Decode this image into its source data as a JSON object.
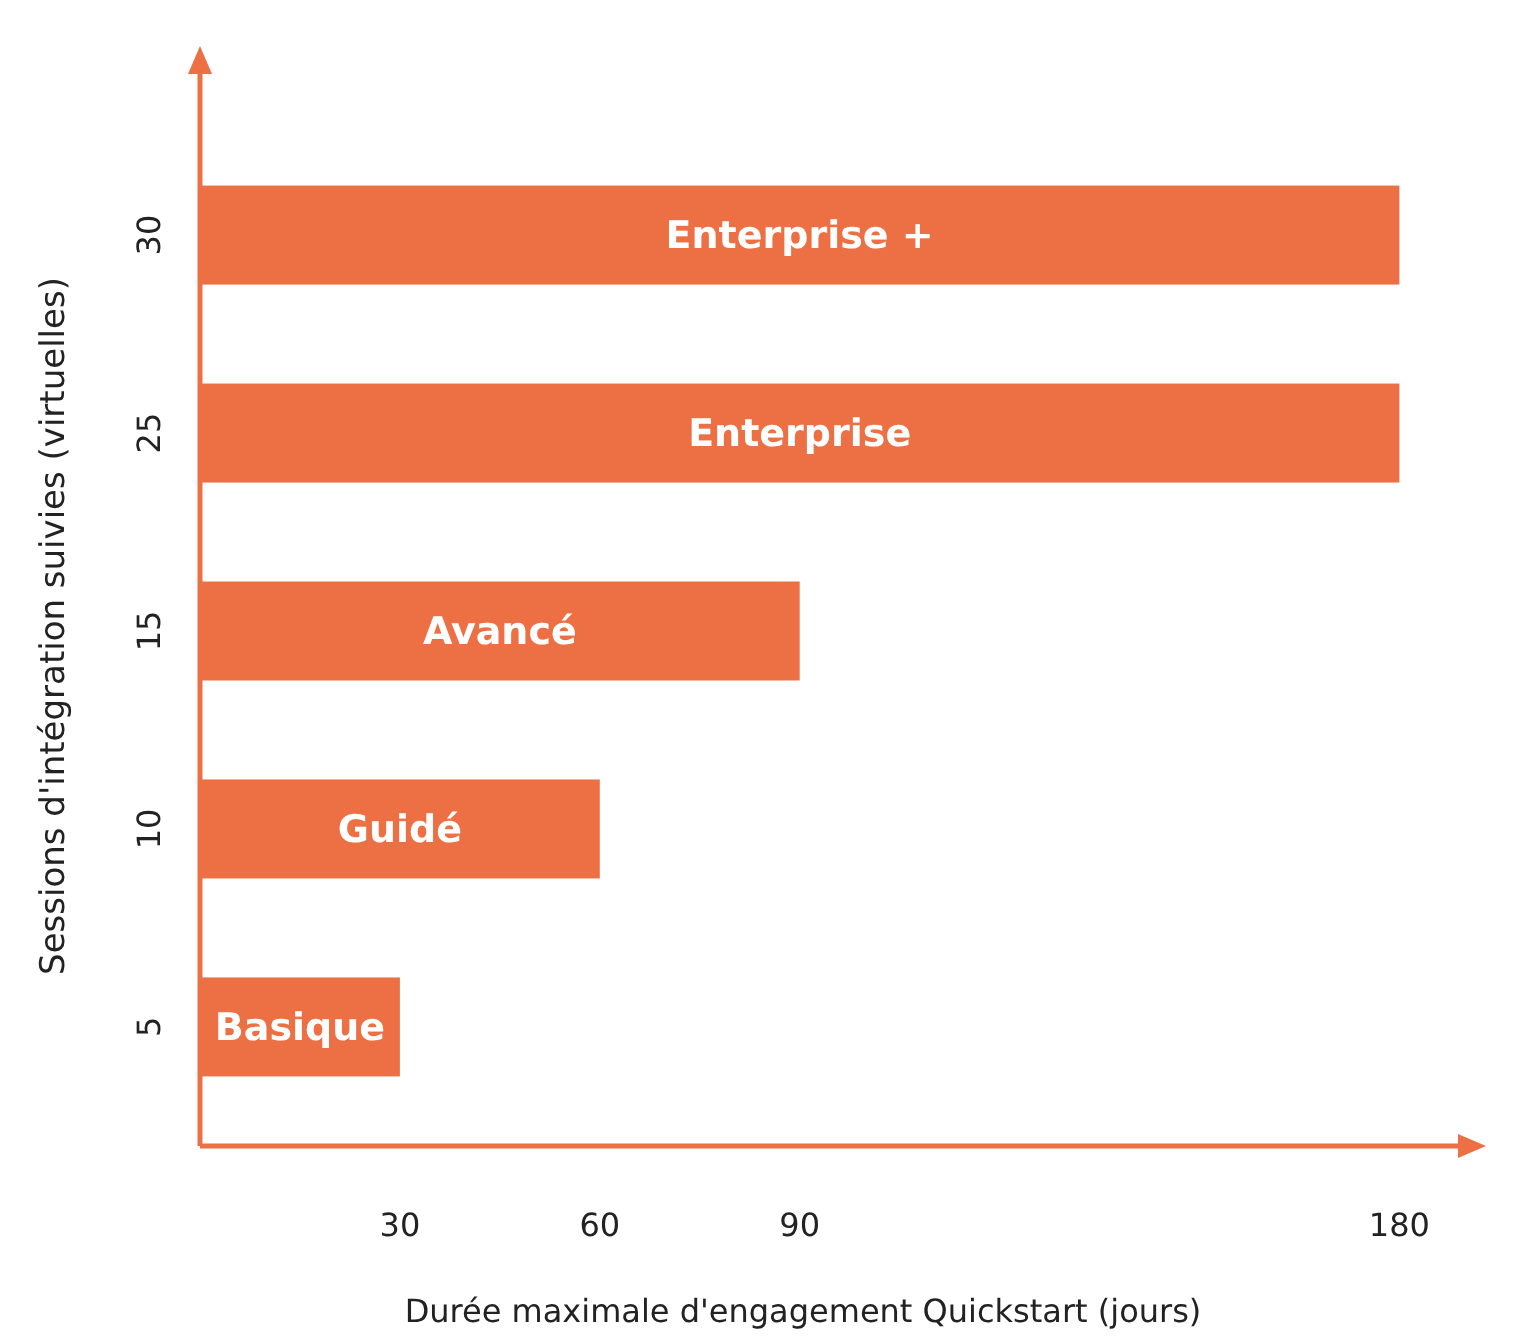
{
  "chart_data": {
    "type": "bar",
    "orientation": "horizontal",
    "xlabel": "Durée maximale d'engagement Quickstart (jours)",
    "ylabel": "Sessions d'intégration suivies (virtuelles)",
    "categories": [
      "30",
      "25",
      "15",
      "10",
      "5"
    ],
    "values": [
      180,
      180,
      90,
      60,
      30
    ],
    "color": "#ec7044",
    "xlim": [
      0,
      190
    ],
    "xticks": [
      30,
      60,
      90,
      180
    ],
    "grid": false,
    "annotations": [
      "Enterprise +",
      "Enterprise",
      "Avancé",
      "Guidé",
      "Basique"
    ]
  }
}
